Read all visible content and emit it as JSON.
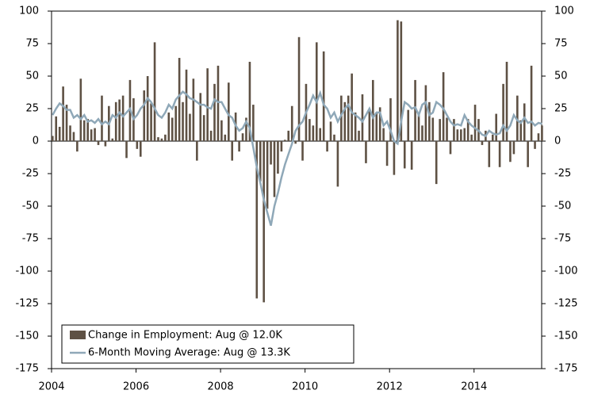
{
  "chart_data": {
    "type": "bar",
    "x": [
      2004,
      2004.083,
      2004.167,
      2004.25,
      2004.333,
      2004.417,
      2004.5,
      2004.583,
      2004.667,
      2004.75,
      2004.833,
      2004.917,
      2005,
      2005.083,
      2005.167,
      2005.25,
      2005.333,
      2005.417,
      2005.5,
      2005.583,
      2005.667,
      2005.75,
      2005.833,
      2005.917,
      2006,
      2006.083,
      2006.167,
      2006.25,
      2006.333,
      2006.417,
      2006.5,
      2006.583,
      2006.667,
      2006.75,
      2006.833,
      2006.917,
      2007,
      2007.083,
      2007.167,
      2007.25,
      2007.333,
      2007.417,
      2007.5,
      2007.583,
      2007.667,
      2007.75,
      2007.833,
      2007.917,
      2008,
      2008.083,
      2008.167,
      2008.25,
      2008.333,
      2008.417,
      2008.5,
      2008.583,
      2008.667,
      2008.75,
      2008.833,
      2008.917,
      2009,
      2009.083,
      2009.167,
      2009.25,
      2009.333,
      2009.417,
      2009.5,
      2009.583,
      2009.667,
      2009.75,
      2009.833,
      2009.917,
      2010,
      2010.083,
      2010.167,
      2010.25,
      2010.333,
      2010.417,
      2010.5,
      2010.583,
      2010.667,
      2010.75,
      2010.833,
      2010.917,
      2011,
      2011.083,
      2011.167,
      2011.25,
      2011.333,
      2011.417,
      2011.5,
      2011.583,
      2011.667,
      2011.75,
      2011.833,
      2011.917,
      2012,
      2012.083,
      2012.167,
      2012.25,
      2012.333,
      2012.417,
      2012.5,
      2012.583,
      2012.667,
      2012.75,
      2012.833,
      2012.917,
      2013,
      2013.083,
      2013.167,
      2013.25,
      2013.333,
      2013.417,
      2013.5,
      2013.583,
      2013.667,
      2013.75,
      2013.833,
      2013.917,
      2014,
      2014.083,
      2014.167,
      2014.25,
      2014.333,
      2014.417,
      2014.5,
      2014.583,
      2014.667,
      2014.75,
      2014.833,
      2014.917,
      2015,
      2015.083,
      2015.167,
      2015.25,
      2015.333,
      2015.417,
      2015.5,
      2015.583
    ],
    "series": [
      {
        "name": "Change in Employment: Aug @ 12.0K",
        "type": "bar",
        "color": "#5e5144",
        "values": [
          4,
          19,
          11,
          42,
          28,
          12,
          7,
          -8,
          48,
          16,
          17,
          9,
          10,
          -3,
          35,
          -4,
          27,
          2,
          30,
          32,
          35,
          -13,
          47,
          33,
          -6,
          -12,
          39,
          50,
          29,
          76,
          3,
          2,
          5,
          22,
          18,
          27,
          64,
          30,
          55,
          21,
          48,
          -15,
          37,
          20,
          56,
          8,
          44,
          58,
          16,
          5,
          45,
          -15,
          22,
          -8,
          6,
          18,
          61,
          28,
          -121,
          -31,
          -124,
          -52,
          -18,
          -43,
          -25,
          -8,
          1,
          8,
          27,
          -2,
          80,
          -15,
          44,
          17,
          12,
          76,
          10,
          69,
          -8,
          15,
          5,
          -35,
          35,
          30,
          35,
          52,
          22,
          8,
          36,
          -17,
          24,
          47,
          22,
          26,
          10,
          -19,
          33,
          -26,
          93,
          92,
          -21,
          24,
          -22,
          47,
          20,
          12,
          43,
          30,
          18,
          -33,
          17,
          53,
          18,
          -10,
          17,
          9,
          9,
          10,
          17,
          5,
          28,
          17,
          -3,
          8,
          -20,
          5,
          21,
          -20,
          44,
          61,
          -16,
          -10,
          35,
          16,
          29,
          -20,
          58,
          -6,
          6,
          12
        ]
      },
      {
        "name": "6-Month Moving Average: Aug @ 13.3K",
        "type": "line",
        "color": "#8fa8b8",
        "values": [
          20,
          25,
          29,
          27,
          24,
          24,
          18,
          20,
          17,
          20,
          15,
          16,
          14,
          17,
          13,
          15,
          13,
          20,
          18,
          22,
          19,
          22,
          25,
          17,
          20,
          25,
          28,
          33,
          30,
          25,
          20,
          18,
          22,
          28,
          25,
          32,
          35,
          38,
          36,
          33,
          32,
          30,
          28,
          28,
          26,
          25,
          32,
          30,
          30,
          25,
          20,
          18,
          12,
          8,
          10,
          15,
          10,
          -5,
          -20,
          -32,
          -45,
          -55,
          -65,
          -50,
          -40,
          -28,
          -18,
          -10,
          -2,
          8,
          12,
          15,
          22,
          28,
          35,
          30,
          37,
          28,
          25,
          18,
          22,
          15,
          20,
          25,
          28,
          22,
          20,
          18,
          15,
          20,
          25,
          18,
          22,
          22,
          12,
          15,
          8,
          0,
          -2,
          15,
          30,
          28,
          25,
          26,
          20,
          28,
          30,
          20,
          22,
          30,
          28,
          25,
          20,
          15,
          12,
          13,
          12,
          20,
          15,
          12,
          10,
          8,
          5,
          4,
          8,
          6,
          5,
          6,
          12,
          8,
          12,
          20,
          16,
          14,
          18,
          14,
          15,
          12,
          14,
          13.3
        ]
      }
    ],
    "xlim": [
      2004,
      2015.6
    ],
    "xticks": [
      2004,
      2006,
      2008,
      2010,
      2012,
      2014
    ],
    "ylim": [
      -175,
      100
    ],
    "yticks": [
      -175,
      -150,
      -125,
      -100,
      -75,
      -50,
      -25,
      0,
      25,
      50,
      75,
      100
    ],
    "legend": "lower left"
  }
}
